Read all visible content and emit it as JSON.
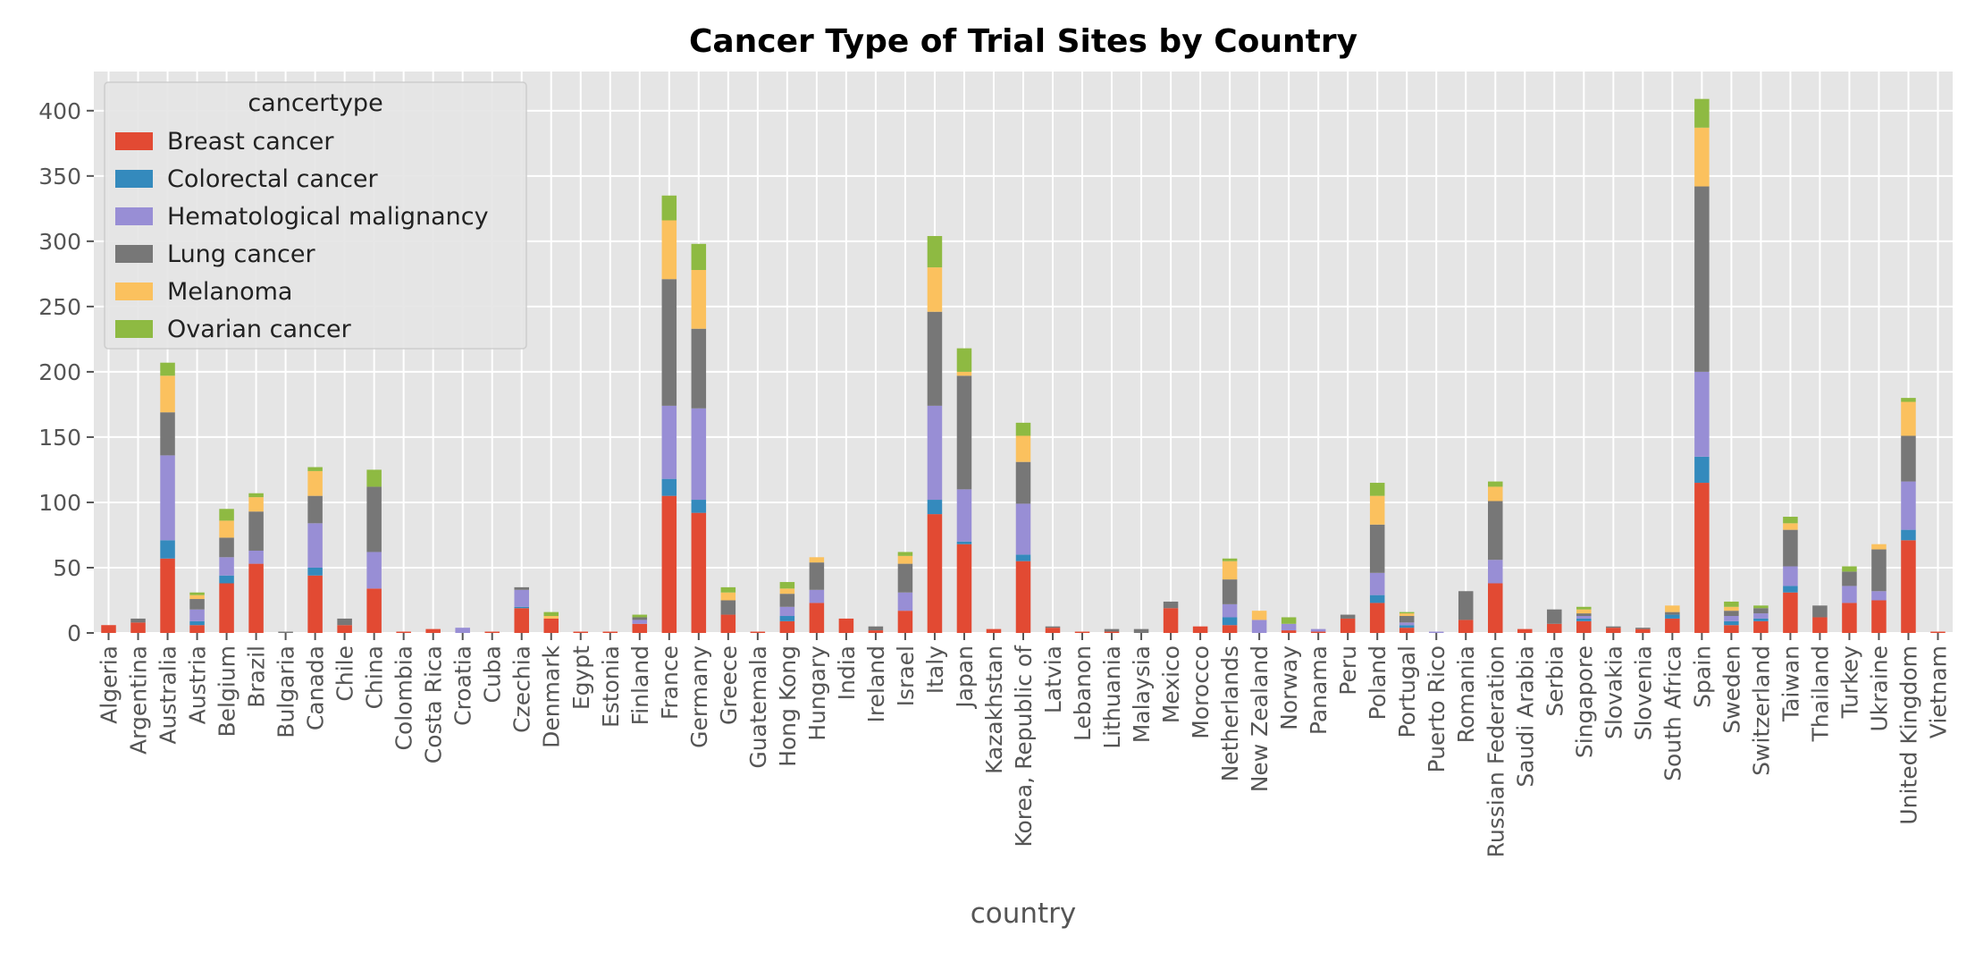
{
  "chart_data": {
    "type": "bar",
    "stacked": true,
    "title": "Cancer Type of Trial Sites by Country",
    "xlabel": "country",
    "ylabel": "",
    "ylim": [
      0,
      430
    ],
    "yticks": [
      0,
      50,
      100,
      150,
      200,
      250,
      300,
      350,
      400
    ],
    "grid": true,
    "legend": {
      "title": "cancertype",
      "position": "top-left"
    },
    "categories": [
      "Algeria",
      "Argentina",
      "Australia",
      "Austria",
      "Belgium",
      "Brazil",
      "Bulgaria",
      "Canada",
      "Chile",
      "China",
      "Colombia",
      "Costa Rica",
      "Croatia",
      "Cuba",
      "Czechia",
      "Denmark",
      "Egypt",
      "Estonia",
      "Finland",
      "France",
      "Germany",
      "Greece",
      "Guatemala",
      "Hong Kong",
      "Hungary",
      "India",
      "Ireland",
      "Israel",
      "Italy",
      "Japan",
      "Kazakhstan",
      "Korea, Republic of",
      "Latvia",
      "Lebanon",
      "Lithuania",
      "Malaysia",
      "Mexico",
      "Morocco",
      "Netherlands",
      "New Zealand",
      "Norway",
      "Panama",
      "Peru",
      "Poland",
      "Portugal",
      "Puerto Rico",
      "Romania",
      "Russian Federation",
      "Saudi Arabia",
      "Serbia",
      "Singapore",
      "Slovakia",
      "Slovenia",
      "South Africa",
      "Spain",
      "Sweden",
      "Switzerland",
      "Taiwan",
      "Thailand",
      "Turkey",
      "Ukraine",
      "United Kingdom",
      "Vietnam"
    ],
    "series": [
      {
        "name": "Breast cancer",
        "color": "#E24A33",
        "values": [
          6,
          8,
          57,
          6,
          38,
          53,
          0,
          44,
          6,
          34,
          1,
          3,
          0,
          1,
          19,
          11,
          1,
          1,
          7,
          105,
          92,
          14,
          1,
          9,
          23,
          11,
          2,
          17,
          91,
          68,
          3,
          55,
          4,
          1,
          1,
          0,
          19,
          5,
          6,
          0,
          2,
          1,
          11,
          23,
          4,
          0,
          10,
          38,
          3,
          7,
          9,
          4,
          3,
          11,
          115,
          6,
          9,
          31,
          12,
          23,
          25,
          71,
          1
        ]
      },
      {
        "name": "Colorectal cancer",
        "color": "#348ABD",
        "values": [
          0,
          0,
          14,
          3,
          6,
          0,
          0,
          6,
          0,
          0,
          0,
          0,
          0,
          0,
          1,
          0,
          0,
          0,
          0,
          13,
          10,
          0,
          0,
          4,
          0,
          0,
          0,
          0,
          11,
          2,
          0,
          5,
          0,
          0,
          0,
          0,
          0,
          0,
          6,
          0,
          0,
          0,
          0,
          6,
          2,
          0,
          0,
          0,
          0,
          0,
          2,
          0,
          0,
          3,
          20,
          3,
          2,
          5,
          0,
          0,
          0,
          8,
          0
        ]
      },
      {
        "name": "Hematological malignancy",
        "color": "#988ED5",
        "values": [
          0,
          0,
          65,
          9,
          14,
          10,
          0,
          34,
          0,
          28,
          0,
          0,
          4,
          0,
          13,
          0,
          0,
          0,
          3,
          56,
          70,
          0,
          0,
          7,
          10,
          0,
          0,
          14,
          72,
          40,
          0,
          39,
          0,
          0,
          0,
          0,
          0,
          0,
          10,
          10,
          5,
          2,
          0,
          17,
          2,
          1,
          0,
          18,
          0,
          0,
          2,
          0,
          0,
          0,
          65,
          4,
          4,
          15,
          0,
          13,
          7,
          37,
          0
        ]
      },
      {
        "name": "Lung cancer",
        "color": "#777777",
        "values": [
          0,
          3,
          33,
          8,
          15,
          30,
          1,
          21,
          5,
          50,
          0,
          0,
          0,
          0,
          2,
          0,
          0,
          0,
          2,
          97,
          61,
          11,
          0,
          10,
          21,
          0,
          3,
          22,
          72,
          87,
          0,
          32,
          1,
          0,
          2,
          3,
          5,
          0,
          19,
          0,
          0,
          0,
          3,
          37,
          5,
          0,
          22,
          45,
          0,
          11,
          2,
          1,
          1,
          2,
          142,
          4,
          4,
          28,
          9,
          11,
          32,
          35,
          0
        ]
      },
      {
        "name": "Melanoma",
        "color": "#FBC15E",
        "values": [
          0,
          0,
          28,
          3,
          13,
          11,
          0,
          19,
          0,
          0,
          0,
          0,
          0,
          0,
          0,
          2,
          0,
          0,
          0,
          45,
          45,
          6,
          0,
          4,
          4,
          0,
          0,
          6,
          34,
          3,
          0,
          20,
          0,
          0,
          0,
          0,
          0,
          0,
          14,
          7,
          0,
          0,
          0,
          22,
          2,
          0,
          0,
          11,
          0,
          0,
          3,
          0,
          0,
          5,
          45,
          3,
          0,
          5,
          0,
          0,
          4,
          26,
          0
        ]
      },
      {
        "name": "Ovarian cancer",
        "color": "#8EBA42",
        "values": [
          0,
          0,
          10,
          2,
          9,
          3,
          0,
          3,
          0,
          13,
          0,
          0,
          0,
          0,
          0,
          3,
          0,
          0,
          2,
          19,
          20,
          4,
          0,
          5,
          0,
          0,
          0,
          3,
          24,
          18,
          0,
          10,
          0,
          0,
          0,
          0,
          0,
          0,
          2,
          0,
          5,
          0,
          0,
          10,
          1,
          0,
          0,
          4,
          0,
          0,
          2,
          0,
          0,
          0,
          22,
          4,
          2,
          5,
          0,
          4,
          0,
          3,
          0
        ]
      }
    ]
  }
}
